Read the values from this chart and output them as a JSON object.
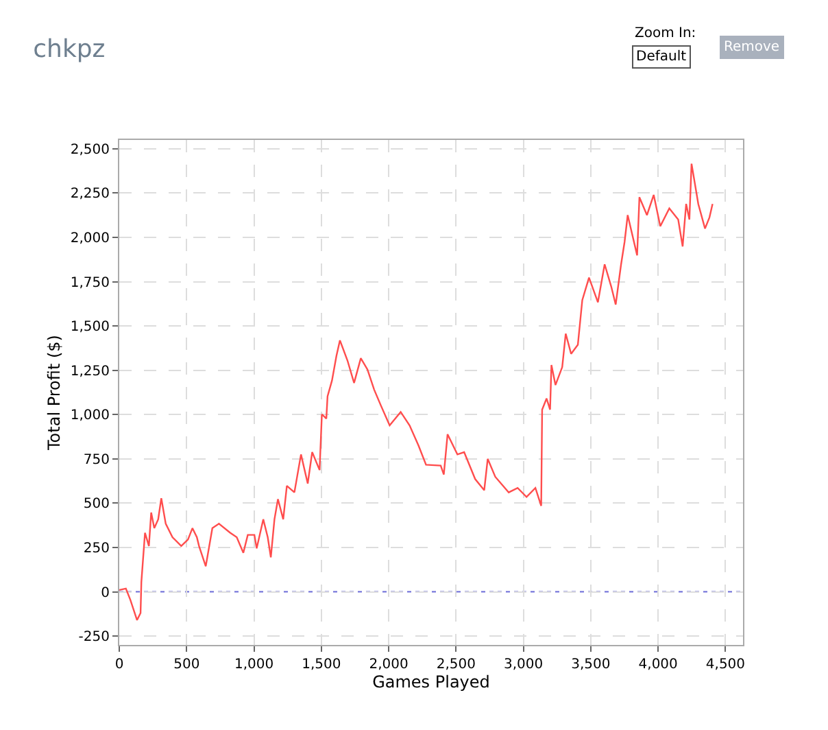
{
  "chart_data": {
    "type": "line",
    "title": "chkpz",
    "xlabel": "Games Played",
    "ylabel": "Total Profit ($)",
    "annotations": [
      "Zoom In:",
      "Default",
      "Remove"
    ],
    "x": [
      0,
      49,
      82,
      132,
      158,
      164,
      191,
      220,
      237,
      260,
      289,
      312,
      345,
      395,
      460,
      510,
      543,
      576,
      592,
      642,
      691,
      740,
      823,
      872,
      921,
      954,
      1003,
      1020,
      1069,
      1102,
      1125,
      1152,
      1178,
      1217,
      1244,
      1300,
      1349,
      1399,
      1432,
      1487,
      1504,
      1537,
      1546,
      1579,
      1612,
      1638,
      1694,
      1743,
      1793,
      1842,
      1892,
      1941,
      2007,
      2089,
      2155,
      2221,
      2277,
      2386,
      2409,
      2437,
      2510,
      2560,
      2642,
      2709,
      2735,
      2791,
      2891,
      2957,
      3023,
      3089,
      3132,
      3139,
      3172,
      3198,
      3208,
      3238,
      3288,
      3314,
      3354,
      3404,
      3437,
      3487,
      3553,
      3603,
      3652,
      3685,
      3725,
      3751,
      3774,
      3844,
      3861,
      3917,
      3967,
      4016,
      4083,
      4149,
      4182,
      4208,
      4232,
      4248,
      4298,
      4348,
      4381,
      4404
    ],
    "series": [
      {
        "color": "#ff4d4d",
        "values": [
          10,
          18,
          -45,
          -160,
          -120,
          55,
          333,
          258,
          447,
          359,
          409,
          528,
          384,
          308,
          258,
          295,
          359,
          308,
          258,
          144,
          359,
          384,
          333,
          308,
          220,
          321,
          321,
          245,
          409,
          308,
          194,
          409,
          523,
          409,
          598,
          561,
          775,
          611,
          788,
          687,
          1002,
          977,
          1103,
          1192,
          1331,
          1419,
          1305,
          1179,
          1318,
          1255,
          1141,
          1053,
          939,
          1015,
          939,
          826,
          717,
          712,
          662,
          889,
          775,
          788,
          636,
          573,
          750,
          649,
          561,
          586,
          535,
          586,
          485,
          1028,
          1091,
          1028,
          1280,
          1167,
          1268,
          1457,
          1343,
          1394,
          1646,
          1773,
          1634,
          1848,
          1722,
          1621,
          1848,
          1975,
          2126,
          1899,
          2227,
          2126,
          2240,
          2063,
          2164,
          2101,
          1949,
          2189,
          2101,
          2416,
          2189,
          2050,
          2113,
          2189
        ]
      }
    ],
    "xlim": [
      0,
      4630
    ],
    "ylim": [
      -300,
      2550
    ],
    "xticks": [
      0,
      {
        "value": 500,
        "label": "500"
      },
      {
        "value": 1000,
        "label": "1,000"
      },
      {
        "value": 1500,
        "label": "1,500"
      },
      {
        "value": 2000,
        "label": "2,000"
      },
      {
        "value": 2500,
        "label": "2,500"
      },
      {
        "value": 3000,
        "label": "3,000"
      },
      {
        "value": 3500,
        "label": "3,500"
      },
      {
        "value": 4000,
        "label": "4,000"
      },
      {
        "value": 4500,
        "label": "4,500"
      }
    ],
    "yticks": [
      -250,
      0,
      250,
      500,
      750,
      {
        "value": 1000,
        "label": "1,000"
      },
      {
        "value": 1250,
        "label": "1,250"
      },
      {
        "value": 1500,
        "label": "1,500"
      },
      {
        "value": 1750,
        "label": "1,750"
      },
      {
        "value": 2000,
        "label": "2,000"
      },
      {
        "value": 2250,
        "label": "2,250"
      },
      {
        "value": 2500,
        "label": "2,500"
      }
    ],
    "ref_lines": [
      {
        "axis": "y",
        "value": 0,
        "color": "#6a6ad8",
        "line_style": "dotted"
      }
    ],
    "grid": true,
    "marker": "none",
    "line_style": "solid"
  }
}
